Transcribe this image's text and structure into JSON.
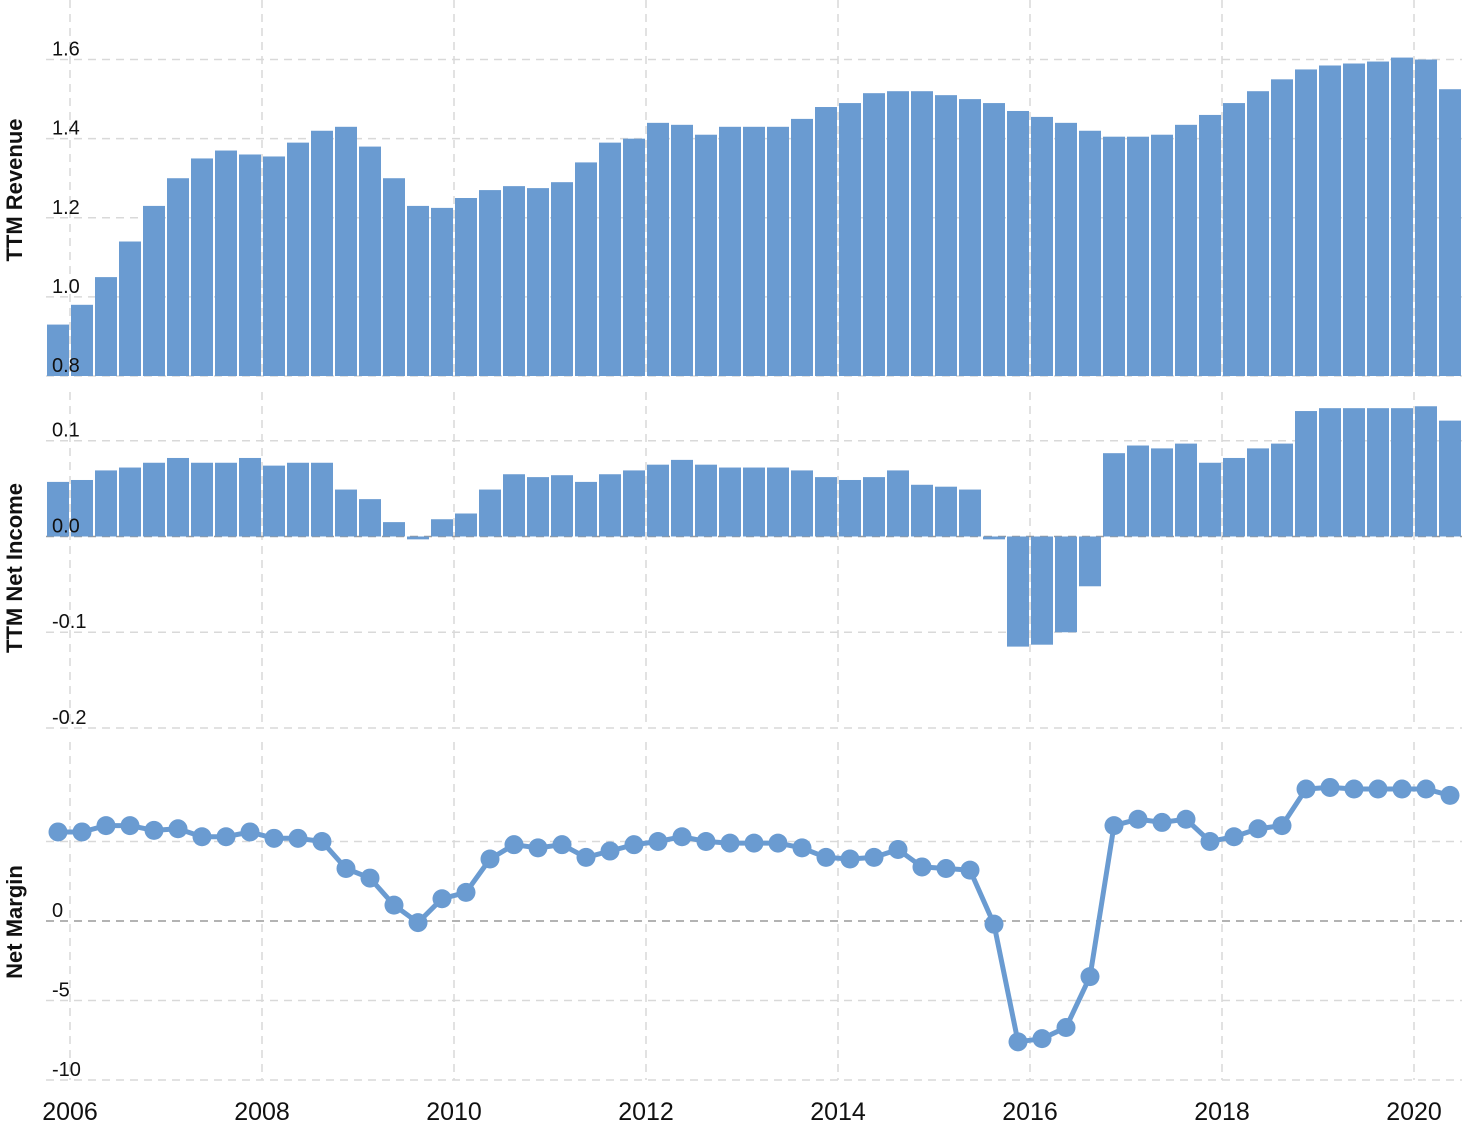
{
  "chart_data": [
    {
      "type": "bar",
      "ylabel": "TTM Revenue",
      "ylim": [
        0.8,
        1.7
      ],
      "yticks": [
        "0.8",
        "1.0",
        "1.2",
        "1.4",
        "1.6"
      ],
      "grid": true,
      "color": "#6a9bd1",
      "x_start": 2005.75,
      "x_step": 0.25,
      "values": [
        0.93,
        0.98,
        1.05,
        1.14,
        1.23,
        1.3,
        1.35,
        1.37,
        1.36,
        1.355,
        1.39,
        1.42,
        1.43,
        1.38,
        1.3,
        1.23,
        1.225,
        1.25,
        1.27,
        1.28,
        1.275,
        1.29,
        1.34,
        1.39,
        1.4,
        1.44,
        1.435,
        1.41,
        1.43,
        1.43,
        1.43,
        1.45,
        1.48,
        1.49,
        1.515,
        1.52,
        1.52,
        1.51,
        1.5,
        1.49,
        1.47,
        1.455,
        1.44,
        1.42,
        1.405,
        1.405,
        1.41,
        1.435,
        1.46,
        1.49,
        1.52,
        1.55,
        1.575,
        1.585,
        1.59,
        1.595,
        1.605,
        1.6,
        1.525
      ]
    },
    {
      "type": "bar",
      "ylabel": "TTM Net Income",
      "ylim": [
        -0.2,
        0.13
      ],
      "yticks": [
        "0.1",
        "0.0",
        "-0.1",
        "-0.2"
      ],
      "grid": true,
      "color": "#6a9bd1",
      "x_start": 2005.75,
      "x_step": 0.25,
      "values": [
        0.057,
        0.059,
        0.069,
        0.072,
        0.077,
        0.082,
        0.077,
        0.077,
        0.082,
        0.074,
        0.077,
        0.077,
        0.049,
        0.039,
        0.015,
        -0.003,
        0.018,
        0.024,
        0.049,
        0.065,
        0.062,
        0.064,
        0.057,
        0.065,
        0.069,
        0.075,
        0.08,
        0.075,
        0.072,
        0.072,
        0.072,
        0.069,
        0.062,
        0.059,
        0.062,
        0.069,
        0.054,
        0.052,
        0.049,
        -0.003,
        -0.115,
        -0.113,
        -0.1,
        -0.052,
        0.087,
        0.095,
        0.092,
        0.097,
        0.077,
        0.082,
        0.092,
        0.097,
        0.131,
        0.134,
        0.134,
        0.134,
        0.134,
        0.136,
        0.121
      ]
    },
    {
      "type": "line",
      "ylabel": "Net Margin",
      "ylim": [
        -10,
        10
      ],
      "yticks": [
        "5",
        "0",
        "-5",
        "-10"
      ],
      "grid": true,
      "markers": true,
      "color": "#6a9bd1",
      "x_start": 2005.75,
      "x_step": 0.25,
      "values": [
        5.6,
        5.6,
        6.0,
        6.0,
        5.7,
        5.8,
        5.3,
        5.3,
        5.6,
        5.2,
        5.2,
        5.0,
        3.3,
        2.7,
        1.0,
        -0.1,
        1.4,
        1.8,
        3.9,
        4.8,
        4.6,
        4.8,
        4.0,
        4.4,
        4.8,
        5.0,
        5.3,
        5.0,
        4.9,
        4.9,
        4.9,
        4.6,
        4.0,
        3.9,
        4.0,
        4.5,
        3.4,
        3.3,
        3.2,
        -0.2,
        -7.6,
        -7.4,
        -6.7,
        -3.5,
        6.0,
        6.4,
        6.2,
        6.4,
        5.0,
        5.3,
        5.8,
        6.0,
        8.3,
        8.4,
        8.3,
        8.3,
        8.3,
        8.3,
        7.9
      ]
    }
  ],
  "x_axis": {
    "ticks": [
      "2006",
      "2008",
      "2010",
      "2012",
      "2014",
      "2016",
      "2018",
      "2020"
    ],
    "tick_values": [
      2006,
      2008,
      2010,
      2012,
      2014,
      2016,
      2018,
      2020
    ]
  }
}
